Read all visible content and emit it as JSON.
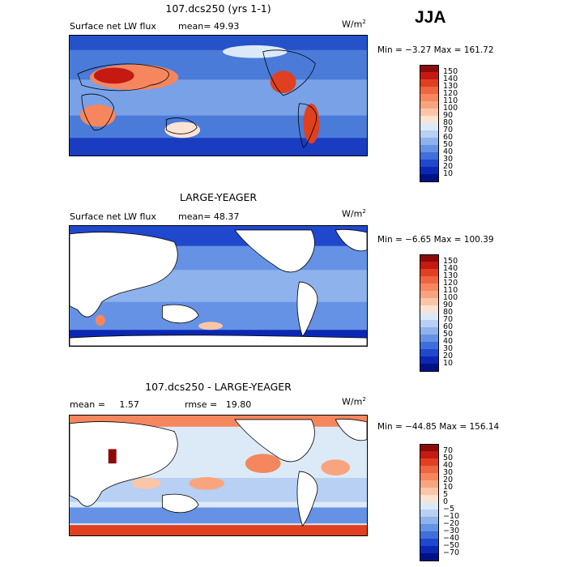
{
  "season": "JJA",
  "panels": [
    {
      "title": "107.dcs250 (yrs 1-1)",
      "left_label": "Surface net LW flux",
      "mid_label": "mean=  49.93",
      "units": "W/m",
      "units_sup": "2",
      "minmax": "Min =  −3.27 Max = 161.72",
      "colorbar_ticks": [
        "150",
        "140",
        "130",
        "120",
        "110",
        "100",
        "90",
        "80",
        "70",
        "60",
        "50",
        "40",
        "30",
        "20",
        "10"
      ],
      "colorbar_colors": [
        "#8c0a0a",
        "#c41a12",
        "#e0401f",
        "#ee6540",
        "#f5865e",
        "#f8a57f",
        "#fbc6a8",
        "#fce3d4",
        "#dceaf8",
        "#b7d0f3",
        "#8db2ec",
        "#6592e4",
        "#3f6fdb",
        "#2048cc",
        "#0b28b4",
        "#001283"
      ],
      "chart_data": {
        "type": "heatmap",
        "title": "107.dcs250 (yrs 1-1)",
        "variable": "Surface net LW flux",
        "mean": 49.93,
        "min": -3.27,
        "max": 161.72,
        "contour_levels": [
          10,
          20,
          30,
          40,
          50,
          60,
          70,
          80,
          90,
          100,
          110,
          120,
          130,
          140,
          150
        ]
      }
    },
    {
      "title": "LARGE-YEAGER",
      "left_label": "Surface net LW flux",
      "mid_label": "mean=  48.37",
      "units": "W/m",
      "units_sup": "2",
      "minmax": "Min =  −6.65 Max = 100.39",
      "colorbar_ticks": [
        "150",
        "140",
        "130",
        "120",
        "110",
        "100",
        "90",
        "80",
        "70",
        "60",
        "50",
        "40",
        "30",
        "20",
        "10"
      ],
      "colorbar_colors": [
        "#8c0a0a",
        "#c41a12",
        "#e0401f",
        "#ee6540",
        "#f5865e",
        "#f8a57f",
        "#fbc6a8",
        "#fce3d4",
        "#dceaf8",
        "#b7d0f3",
        "#8db2ec",
        "#6592e4",
        "#3f6fdb",
        "#2048cc",
        "#0b28b4",
        "#001283"
      ],
      "chart_data": {
        "type": "heatmap",
        "title": "LARGE-YEAGER",
        "variable": "Surface net LW flux",
        "mean": 48.37,
        "min": -6.65,
        "max": 100.39,
        "contour_levels": [
          10,
          20,
          30,
          40,
          50,
          60,
          70,
          80,
          90,
          100,
          110,
          120,
          130,
          140,
          150
        ]
      }
    },
    {
      "title": "107.dcs250 - LARGE-YEAGER",
      "left_label": "mean =     1.57",
      "mid_label": "rmse =   19.80",
      "units": "W/m",
      "units_sup": "2",
      "minmax": "Min = −44.85 Max = 156.14",
      "colorbar_ticks": [
        "70",
        "50",
        "40",
        "30",
        "20",
        "10",
        "5",
        "0",
        "−5",
        "−10",
        "−20",
        "−30",
        "−40",
        "−50",
        "−70"
      ],
      "colorbar_colors": [
        "#8c0a0a",
        "#c41a12",
        "#e0401f",
        "#ee6540",
        "#f5865e",
        "#f8a57f",
        "#fbc6a8",
        "#fce3d4",
        "#dceaf8",
        "#b7d0f3",
        "#8db2ec",
        "#6592e4",
        "#3f6fdb",
        "#2048cc",
        "#0b28b4",
        "#001283"
      ],
      "chart_data": {
        "type": "heatmap",
        "title": "107.dcs250 - LARGE-YEAGER",
        "mean": 1.57,
        "rmse": 19.8,
        "min": -44.85,
        "max": 156.14,
        "contour_levels": [
          -70,
          -50,
          -40,
          -30,
          -20,
          -10,
          -5,
          0,
          5,
          10,
          20,
          30,
          40,
          50,
          70
        ]
      }
    }
  ]
}
